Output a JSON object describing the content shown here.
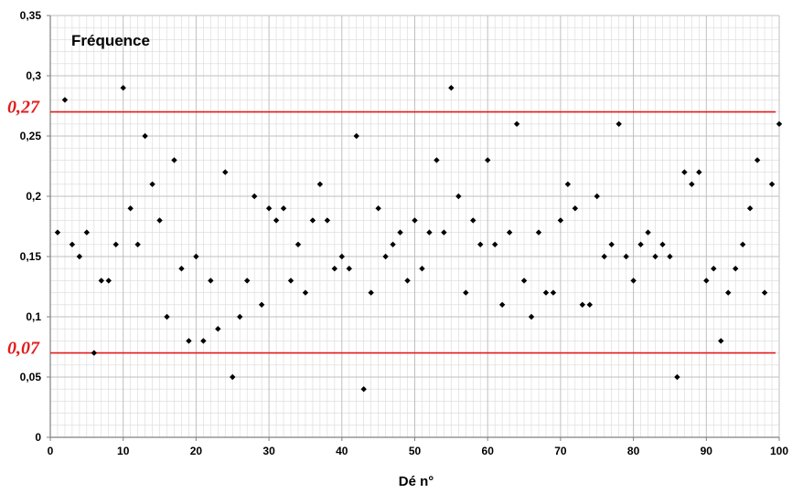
{
  "chart_data": {
    "type": "scatter",
    "series_label": "Fréquence",
    "xlabel": "Dé n°",
    "xlim": [
      0,
      100
    ],
    "ylim": [
      0,
      0.35
    ],
    "x_ticks": [
      {
        "value": 0,
        "label": "0"
      },
      {
        "value": 10,
        "label": "10"
      },
      {
        "value": 20,
        "label": "20"
      },
      {
        "value": 30,
        "label": "30"
      },
      {
        "value": 40,
        "label": "40"
      },
      {
        "value": 50,
        "label": "50"
      },
      {
        "value": 60,
        "label": "60"
      },
      {
        "value": 70,
        "label": "70"
      },
      {
        "value": 80,
        "label": "80"
      },
      {
        "value": 90,
        "label": "90"
      },
      {
        "value": 100,
        "label": "100"
      }
    ],
    "y_ticks": [
      {
        "value": 0,
        "label": "0"
      },
      {
        "value": 0.05,
        "label": "0,05"
      },
      {
        "value": 0.1,
        "label": "0,1"
      },
      {
        "value": 0.15,
        "label": "0,15"
      },
      {
        "value": 0.2,
        "label": "0,2"
      },
      {
        "value": 0.25,
        "label": "0,25"
      },
      {
        "value": 0.3,
        "label": "0,3"
      },
      {
        "value": 0.35,
        "label": "0,35"
      }
    ],
    "grid": true,
    "minor_grid": true,
    "reference_lines": [
      {
        "value": 0.27,
        "label": "0,27",
        "color": "#e31a1c"
      },
      {
        "value": 0.07,
        "label": "0,07",
        "color": "#e31a1c"
      }
    ],
    "points": [
      [
        1,
        0.17
      ],
      [
        2,
        0.28
      ],
      [
        3,
        0.16
      ],
      [
        4,
        0.15
      ],
      [
        5,
        0.17
      ],
      [
        6,
        0.07
      ],
      [
        7,
        0.13
      ],
      [
        8,
        0.13
      ],
      [
        9,
        0.16
      ],
      [
        10,
        0.29
      ],
      [
        11,
        0.19
      ],
      [
        12,
        0.16
      ],
      [
        13,
        0.25
      ],
      [
        14,
        0.21
      ],
      [
        15,
        0.18
      ],
      [
        16,
        0.1
      ],
      [
        17,
        0.23
      ],
      [
        18,
        0.14
      ],
      [
        19,
        0.08
      ],
      [
        20,
        0.15
      ],
      [
        21,
        0.08
      ],
      [
        22,
        0.13
      ],
      [
        23,
        0.09
      ],
      [
        24,
        0.22
      ],
      [
        25,
        0.05
      ],
      [
        26,
        0.1
      ],
      [
        27,
        0.13
      ],
      [
        28,
        0.2
      ],
      [
        29,
        0.11
      ],
      [
        30,
        0.19
      ],
      [
        31,
        0.18
      ],
      [
        32,
        0.19
      ],
      [
        33,
        0.13
      ],
      [
        34,
        0.16
      ],
      [
        35,
        0.12
      ],
      [
        36,
        0.18
      ],
      [
        37,
        0.21
      ],
      [
        38,
        0.18
      ],
      [
        39,
        0.14
      ],
      [
        40,
        0.15
      ],
      [
        41,
        0.14
      ],
      [
        42,
        0.25
      ],
      [
        43,
        0.04
      ],
      [
        44,
        0.12
      ],
      [
        45,
        0.19
      ],
      [
        46,
        0.15
      ],
      [
        47,
        0.16
      ],
      [
        48,
        0.17
      ],
      [
        49,
        0.13
      ],
      [
        50,
        0.18
      ],
      [
        51,
        0.14
      ],
      [
        52,
        0.17
      ],
      [
        53,
        0.23
      ],
      [
        54,
        0.17
      ],
      [
        55,
        0.29
      ],
      [
        56,
        0.2
      ],
      [
        57,
        0.12
      ],
      [
        58,
        0.18
      ],
      [
        59,
        0.16
      ],
      [
        60,
        0.23
      ],
      [
        61,
        0.16
      ],
      [
        62,
        0.11
      ],
      [
        63,
        0.17
      ],
      [
        64,
        0.26
      ],
      [
        65,
        0.13
      ],
      [
        66,
        0.1
      ],
      [
        67,
        0.17
      ],
      [
        68,
        0.12
      ],
      [
        69,
        0.12
      ],
      [
        70,
        0.18
      ],
      [
        71,
        0.21
      ],
      [
        72,
        0.19
      ],
      [
        73,
        0.11
      ],
      [
        74,
        0.11
      ],
      [
        75,
        0.2
      ],
      [
        76,
        0.15
      ],
      [
        77,
        0.16
      ],
      [
        78,
        0.26
      ],
      [
        79,
        0.15
      ],
      [
        80,
        0.13
      ],
      [
        81,
        0.16
      ],
      [
        82,
        0.17
      ],
      [
        83,
        0.15
      ],
      [
        84,
        0.16
      ],
      [
        85,
        0.15
      ],
      [
        86,
        0.05
      ],
      [
        87,
        0.22
      ],
      [
        88,
        0.21
      ],
      [
        89,
        0.22
      ],
      [
        90,
        0.13
      ],
      [
        91,
        0.14
      ],
      [
        92,
        0.08
      ],
      [
        93,
        0.12
      ],
      [
        94,
        0.14
      ],
      [
        95,
        0.16
      ],
      [
        96,
        0.19
      ],
      [
        97,
        0.23
      ],
      [
        98,
        0.12
      ],
      [
        99,
        0.21
      ],
      [
        100,
        0.26
      ]
    ],
    "colors": {
      "points": "#000000",
      "grid": "#bfbfbf",
      "axis": "#808080"
    }
  }
}
